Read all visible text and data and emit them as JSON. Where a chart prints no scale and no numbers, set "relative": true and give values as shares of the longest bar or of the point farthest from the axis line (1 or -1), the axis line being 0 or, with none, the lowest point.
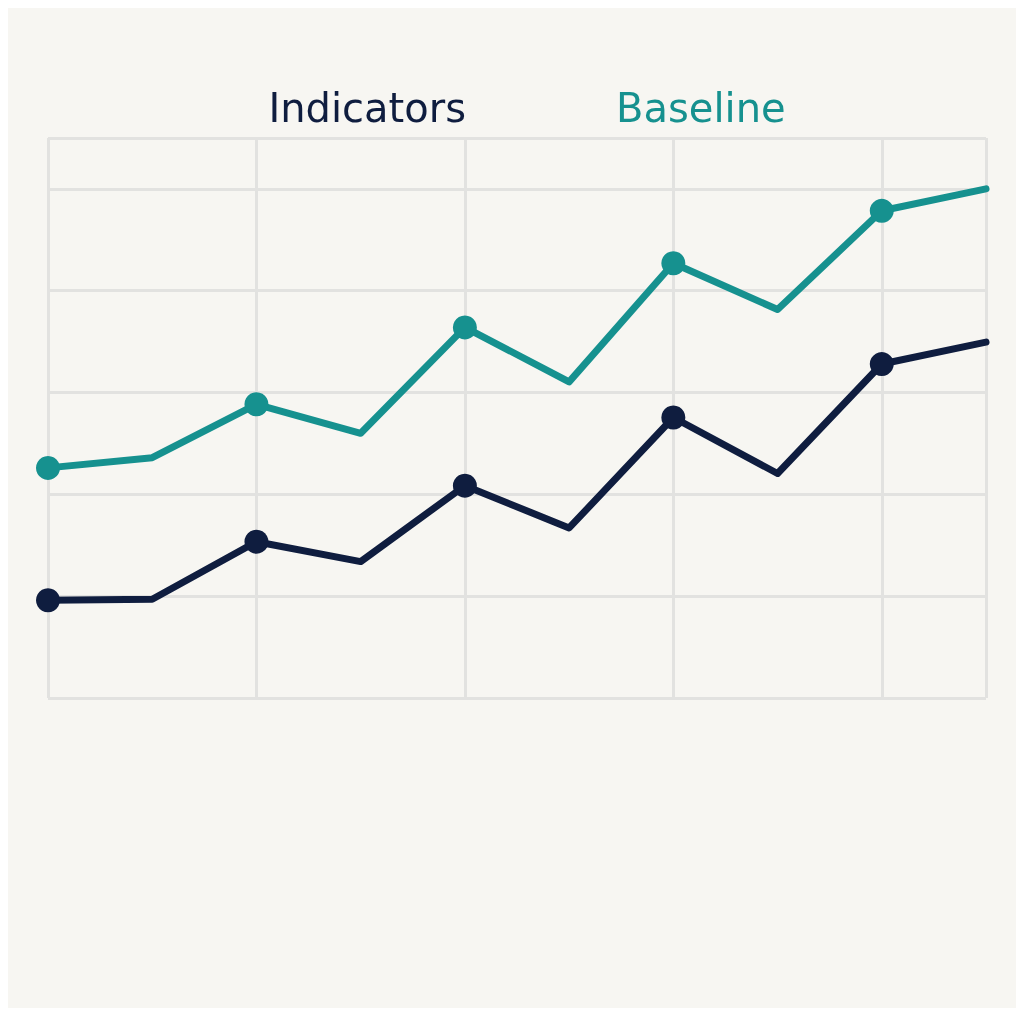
{
  "chart_data": {
    "type": "line",
    "relative": true,
    "categories": [
      null,
      null,
      null,
      null,
      null,
      null,
      null,
      null,
      null,
      null
    ],
    "series": [
      {
        "name": "Indicators",
        "color": "#0f1d3f",
        "values": [
          0.192,
          0.194,
          0.307,
          0.268,
          0.417,
          0.334,
          0.551,
          0.441,
          0.656,
          0.699
        ]
      },
      {
        "name": "Baseline",
        "color": "#16918f",
        "values": [
          0.452,
          0.472,
          0.577,
          0.52,
          0.728,
          0.621,
          0.854,
          0.763,
          0.957,
          1
        ]
      }
    ],
    "marker": "circle",
    "line_style": "solid",
    "grid": true,
    "legend": "top"
  }
}
